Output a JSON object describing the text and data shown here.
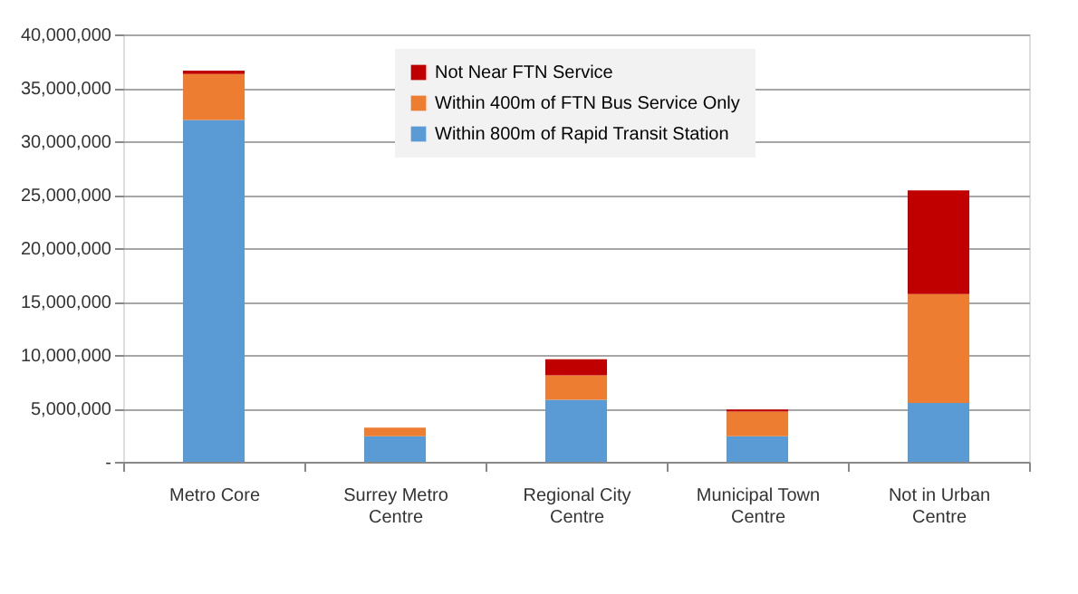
{
  "chart_data": {
    "type": "bar",
    "stacked": true,
    "categories": [
      "Metro Core",
      "Surrey Metro Centre",
      "Regional City Centre",
      "Municipal Town Centre",
      "Not in Urban Centre"
    ],
    "series": [
      {
        "name": "Within 800m of Rapid Transit Station",
        "color": "#5b9bd5",
        "values": [
          32000000,
          2400000,
          5800000,
          2400000,
          5500000
        ]
      },
      {
        "name": "Within 400m of FTN Bus Service Only",
        "color": "#ed7d31",
        "values": [
          4300000,
          800000,
          2300000,
          2300000,
          10200000
        ]
      },
      {
        "name": "Not Near FTN Service",
        "color": "#c00000",
        "values": [
          300000,
          0,
          1500000,
          200000,
          9700000
        ]
      }
    ],
    "ylim": [
      0,
      40000000
    ],
    "yticks": [
      {
        "value": 0,
        "label": "-"
      },
      {
        "value": 5000000,
        "label": "5,000,000"
      },
      {
        "value": 10000000,
        "label": "10,000,000"
      },
      {
        "value": 15000000,
        "label": "15,000,000"
      },
      {
        "value": 20000000,
        "label": "20,000,000"
      },
      {
        "value": 25000000,
        "label": "25,000,000"
      },
      {
        "value": 30000000,
        "label": "30,000,000"
      },
      {
        "value": 35000000,
        "label": "35,000,000"
      },
      {
        "value": 40000000,
        "label": "40,000,000"
      }
    ],
    "grid": "y",
    "legend": "top"
  }
}
